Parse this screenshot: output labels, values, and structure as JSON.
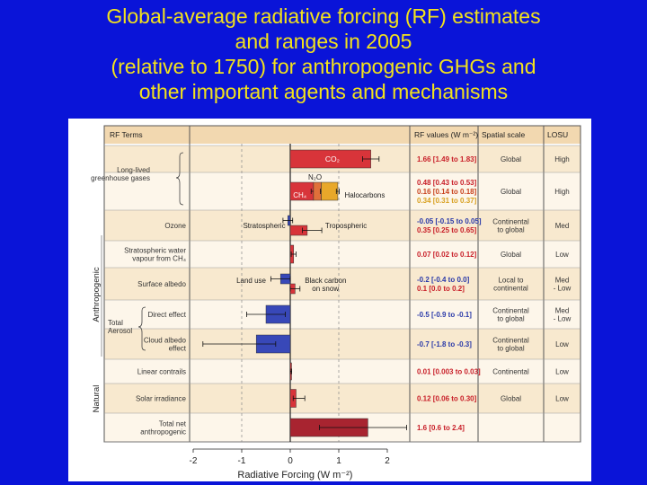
{
  "slide": {
    "title_lines": [
      "Global-average radiative forcing (RF) estimates",
      "and ranges in 2005",
      "(relative to 1750) for anthropogenic GHGs and",
      "other important agents and mechanisms"
    ],
    "colors": {
      "background": "#0a14d8",
      "title": "#f2e21c"
    }
  },
  "chart_data": {
    "type": "bar",
    "orientation": "horizontal",
    "headers": {
      "terms": "RF Terms",
      "values": "RF values (W m⁻²)",
      "scale": "Spatial scale",
      "losu": "LOSU"
    },
    "xlabel": "Radiative Forcing (W m⁻²)",
    "xlim": [
      -2,
      2
    ],
    "xticks": [
      "-2",
      "-1",
      "0",
      "1",
      "2"
    ],
    "group_labels": {
      "anthropogenic": "Anthropogenic",
      "natural": "Natural"
    },
    "rows": [
      {
        "label": [
          "",
          ""
        ],
        "bracket_label": [
          "Long-lived",
          "greenhouse gases"
        ],
        "bars": [
          {
            "name": "CO₂",
            "start": 0,
            "end": 1.66,
            "low": 1.49,
            "high": 1.83,
            "color": "#d8343a"
          }
        ],
        "values": [
          {
            "text": "1.66 [1.49 to 1.83]",
            "color": "#c81e28"
          }
        ],
        "scale": [
          "Global"
        ],
        "losu": [
          "High"
        ]
      },
      {
        "label": [
          "",
          ""
        ],
        "bars": [
          {
            "name": "CH₄",
            "start": 0,
            "end": 0.48,
            "low": 0.43,
            "high": 0.53,
            "color": "#d8343a"
          },
          {
            "name": "N₂O",
            "start": 0.48,
            "end": 0.64,
            "low": 0.62,
            "high": 0.66,
            "color": "#e0703a"
          },
          {
            "name": "Halocarbons",
            "start": 0.64,
            "end": 0.98,
            "low": 0.95,
            "high": 1.01,
            "color": "#e8a82a"
          }
        ],
        "values": [
          {
            "text": "0.48 [0.43 to 0.53]",
            "color": "#c81e28"
          },
          {
            "text": "0.16 [0.14 to 0.18]",
            "color": "#c8421e"
          },
          {
            "text": "0.34 [0.31 to 0.37]",
            "color": "#d8a020"
          }
        ],
        "scale": [
          "Global"
        ],
        "losu": [
          "High"
        ]
      },
      {
        "label": [
          "Ozone",
          ""
        ],
        "annotations": [
          "Stratospheric",
          "Tropospheric"
        ],
        "bars": [
          {
            "name": "Stratospheric",
            "start": 0,
            "end": -0.05,
            "low": -0.15,
            "high": 0.05,
            "color": "#3848b8"
          },
          {
            "name": "Tropospheric",
            "start": 0,
            "end": 0.35,
            "low": 0.25,
            "high": 0.65,
            "color": "#d8343a"
          }
        ],
        "values": [
          {
            "text": "-0.05 [-0.15 to 0.05]",
            "color": "#2838a8"
          },
          {
            "text": "0.35 [0.25 to 0.65]",
            "color": "#c81e28"
          }
        ],
        "scale": [
          "Continental",
          "to global"
        ],
        "losu": [
          "Med"
        ]
      },
      {
        "label": [
          "Stratospheric water",
          "vapour from CH₄"
        ],
        "bars": [
          {
            "name": "Stratospheric water vapour",
            "start": 0,
            "end": 0.07,
            "low": 0.02,
            "high": 0.12,
            "color": "#d8343a"
          }
        ],
        "values": [
          {
            "text": "0.07 [0.02 to 0.12]",
            "color": "#c81e28"
          }
        ],
        "scale": [
          "Global"
        ],
        "losu": [
          "Low"
        ]
      },
      {
        "label": [
          "Surface albedo",
          ""
        ],
        "annotations": [
          "Land use",
          "Black carbon",
          "on snow"
        ],
        "bars": [
          {
            "name": "Land use",
            "start": 0,
            "end": -0.2,
            "low": -0.4,
            "high": 0.0,
            "color": "#3848b8"
          },
          {
            "name": "Black carbon on snow",
            "start": 0,
            "end": 0.1,
            "low": 0.0,
            "high": 0.2,
            "color": "#d8343a"
          }
        ],
        "values": [
          {
            "text": "-0.2 [-0.4 to 0.0]",
            "color": "#2838a8"
          },
          {
            "text": "0.1 [0.0 to 0.2]",
            "color": "#c81e28"
          }
        ],
        "scale": [
          "Local to",
          "continental"
        ],
        "losu": [
          "Med",
          "- Low"
        ]
      },
      {
        "label": [
          "Direct effect",
          ""
        ],
        "bracket_label": [
          "Total",
          "Aerosol"
        ],
        "bars": [
          {
            "name": "Direct effect",
            "start": 0,
            "end": -0.5,
            "low": -0.9,
            "high": -0.1,
            "color": "#3848b8"
          }
        ],
        "values": [
          {
            "text": "-0.5 [-0.9 to -0.1]",
            "color": "#2838a8"
          }
        ],
        "scale": [
          "Continental",
          "to global"
        ],
        "losu": [
          "Med",
          "- Low"
        ]
      },
      {
        "label": [
          "Cloud albedo",
          "effect"
        ],
        "bars": [
          {
            "name": "Cloud albedo effect",
            "start": 0,
            "end": -0.7,
            "low": -1.8,
            "high": -0.3,
            "color": "#3848b8"
          }
        ],
        "values": [
          {
            "text": "-0.7 [-1.8 to -0.3]",
            "color": "#2838a8"
          }
        ],
        "scale": [
          "Continental",
          "to global"
        ],
        "losu": [
          "Low"
        ]
      },
      {
        "label": [
          "Linear contrails",
          ""
        ],
        "bars": [
          {
            "name": "Linear contrails",
            "start": 0,
            "end": 0.01,
            "low": 0.003,
            "high": 0.03,
            "color": "#d8343a"
          }
        ],
        "values": [
          {
            "text": "0.01 [0.003 to 0.03]",
            "color": "#c81e28"
          }
        ],
        "scale": [
          "Continental"
        ],
        "losu": [
          "Low"
        ]
      },
      {
        "label": [
          "Solar irradiance",
          ""
        ],
        "bars": [
          {
            "name": "Solar irradiance",
            "start": 0,
            "end": 0.12,
            "low": 0.06,
            "high": 0.3,
            "color": "#d8343a"
          }
        ],
        "values": [
          {
            "text": "0.12 [0.06 to 0.30]",
            "color": "#c81e28"
          }
        ],
        "scale": [
          "Global"
        ],
        "losu": [
          "Low"
        ]
      },
      {
        "label": [
          "Total net",
          "anthropogenic"
        ],
        "bars": [
          {
            "name": "Total net anthropogenic",
            "start": 0,
            "end": 1.6,
            "low": 0.6,
            "high": 2.4,
            "color": "#a82430"
          }
        ],
        "values": [
          {
            "text": "1.6 [0.6 to 2.4]",
            "color": "#c81e28"
          }
        ],
        "scale": [
          ""
        ],
        "losu": [
          ""
        ]
      }
    ]
  }
}
